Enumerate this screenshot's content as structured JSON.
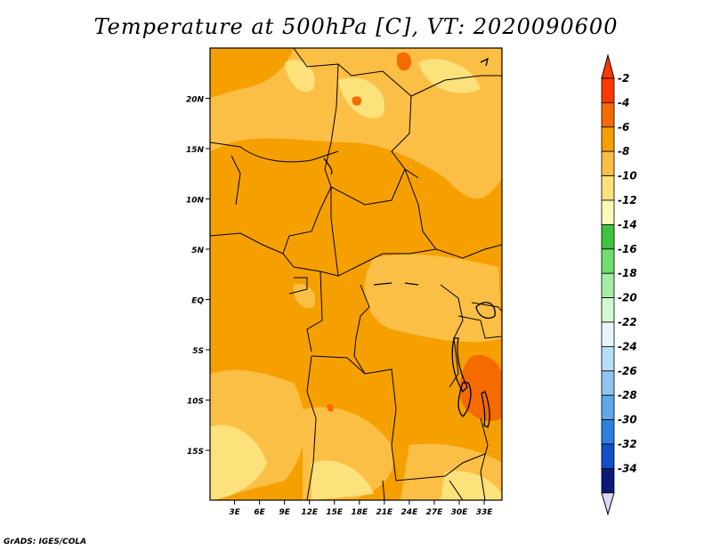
{
  "title": "Temperature at 500hPa [C], VT: 2020090600",
  "footer": "GrADS: IGES/COLA",
  "map": {
    "lat_ticks": [
      {
        "label": "20N",
        "lat": 20
      },
      {
        "label": "15N",
        "lat": 15
      },
      {
        "label": "10N",
        "lat": 10
      },
      {
        "label": "5N",
        "lat": 5
      },
      {
        "label": "EQ",
        "lat": 0
      },
      {
        "label": "5S",
        "lat": -5
      },
      {
        "label": "10S",
        "lat": -10
      },
      {
        "label": "15S",
        "lat": -15
      }
    ],
    "lon_ticks": [
      {
        "label": "3E",
        "lon": 3
      },
      {
        "label": "6E",
        "lon": 6
      },
      {
        "label": "9E",
        "lon": 9
      },
      {
        "label": "12E",
        "lon": 12
      },
      {
        "label": "15E",
        "lon": 15
      },
      {
        "label": "18E",
        "lon": 18
      },
      {
        "label": "21E",
        "lon": 21
      },
      {
        "label": "24E",
        "lon": 24
      },
      {
        "label": "27E",
        "lon": 27
      },
      {
        "label": "30E",
        "lon": 30
      },
      {
        "label": "33E",
        "lon": 33
      }
    ]
  },
  "colorbar": {
    "levels": [
      {
        "label": "-2",
        "color": "#ff3a00"
      },
      {
        "label": "-4",
        "color": "#f56b00"
      },
      {
        "label": "-6",
        "color": "#f5a000"
      },
      {
        "label": "-8",
        "color": "#fbbf45"
      },
      {
        "label": "-10",
        "color": "#fde17b"
      },
      {
        "label": "-12",
        "color": "#fff8b8"
      },
      {
        "label": "-14",
        "color": "#3ec43e"
      },
      {
        "label": "-16",
        "color": "#6fdd6f"
      },
      {
        "label": "-18",
        "color": "#a4eea4"
      },
      {
        "label": "-20",
        "color": "#d2f9d2"
      },
      {
        "label": "-22",
        "color": "#e6f6ff"
      },
      {
        "label": "-24",
        "color": "#b8ddf6"
      },
      {
        "label": "-26",
        "color": "#8fc5f0"
      },
      {
        "label": "-28",
        "color": "#5ea8ea"
      },
      {
        "label": "-30",
        "color": "#2f7fe0"
      },
      {
        "label": "-32",
        "color": "#1050c8"
      },
      {
        "label": "-34",
        "color": "#0a2a9a"
      }
    ],
    "top_color": "#ff3a00",
    "bottom_color": "#0b1a78",
    "end_lower_color": "#d8dcfb"
  }
}
